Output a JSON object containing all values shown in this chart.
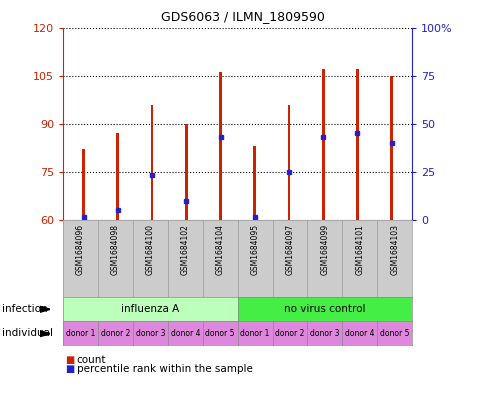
{
  "title": "GDS6063 / ILMN_1809590",
  "samples": [
    "GSM1684096",
    "GSM1684098",
    "GSM1684100",
    "GSM1684102",
    "GSM1684104",
    "GSM1684095",
    "GSM1684097",
    "GSM1684099",
    "GSM1684101",
    "GSM1684103"
  ],
  "red_values": [
    82,
    87,
    96,
    90,
    106,
    83,
    96,
    107,
    107,
    105
  ],
  "blue_values": [
    61,
    63,
    74,
    66,
    86,
    61,
    75,
    86,
    87,
    84
  ],
  "y_min": 60,
  "y_max": 120,
  "y_ticks": [
    60,
    75,
    90,
    105,
    120
  ],
  "y_right_ticks": [
    0,
    25,
    50,
    75,
    100
  ],
  "bar_color": "#cc2200",
  "dot_color": "#2222cc",
  "bg_color": "#ffffff",
  "plot_bg": "#ffffff",
  "infection_groups": [
    {
      "label": "influenza A",
      "start": 0,
      "end": 5,
      "color": "#bbffbb"
    },
    {
      "label": "no virus control",
      "start": 5,
      "end": 10,
      "color": "#44ee44"
    }
  ],
  "individual_labels": [
    "donor 1",
    "donor 2",
    "donor 3",
    "donor 4",
    "donor 5",
    "donor 1",
    "donor 2",
    "donor 3",
    "donor 4",
    "donor 5"
  ],
  "individual_color": "#dd88dd",
  "tick_label_color": "#333333",
  "left_axis_color": "#cc2200",
  "right_axis_color": "#2222cc",
  "xlabel_infection": "infection",
  "xlabel_individual": "individual",
  "legend_count": "count",
  "legend_percentile": "percentile rank within the sample",
  "bar_width": 0.08,
  "xtick_bg_color": "#cccccc"
}
